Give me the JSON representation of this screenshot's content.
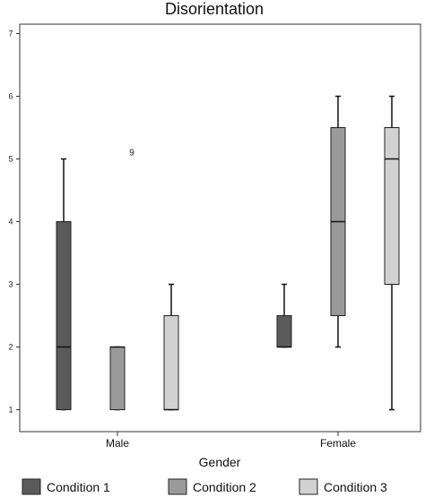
{
  "chart_data": {
    "type": "boxplot",
    "title": "Disorientation",
    "xlabel": "Gender",
    "ylabel": "",
    "ylim": [
      0.65,
      7.15
    ],
    "yticks": [
      1,
      2,
      3,
      4,
      5,
      6,
      7
    ],
    "categories": [
      "Male",
      "Female"
    ],
    "legend_position": "bottom",
    "grid": false,
    "series": [
      {
        "name": "Condition 1",
        "color": "#5a5a5a",
        "boxes": [
          {
            "category": "Male",
            "min": 1,
            "q1": 1,
            "median": 2,
            "q3": 4,
            "max": 5
          },
          {
            "category": "Female",
            "min": 2,
            "q1": 2,
            "median": 2,
            "q3": 2.5,
            "max": 3
          }
        ]
      },
      {
        "name": "Condition 2",
        "color": "#9a9a9a",
        "boxes": [
          {
            "category": "Male",
            "min": 1,
            "q1": 1,
            "median": 2,
            "q3": 2,
            "max": 2
          },
          {
            "category": "Female",
            "min": 2,
            "q1": 2.5,
            "median": 4,
            "q3": 5.5,
            "max": 6
          }
        ]
      },
      {
        "name": "Condition 3",
        "color": "#d2d2d2",
        "boxes": [
          {
            "category": "Male",
            "min": 1,
            "q1": 1,
            "median": 1,
            "q3": 2.5,
            "max": 3
          },
          {
            "category": "Female",
            "min": 1,
            "q1": 3,
            "median": 5,
            "q3": 5.5,
            "max": 6
          }
        ]
      }
    ],
    "annotations": [
      {
        "text": "9",
        "category": "Male",
        "series_index": 1,
        "y": 5.1
      }
    ]
  }
}
